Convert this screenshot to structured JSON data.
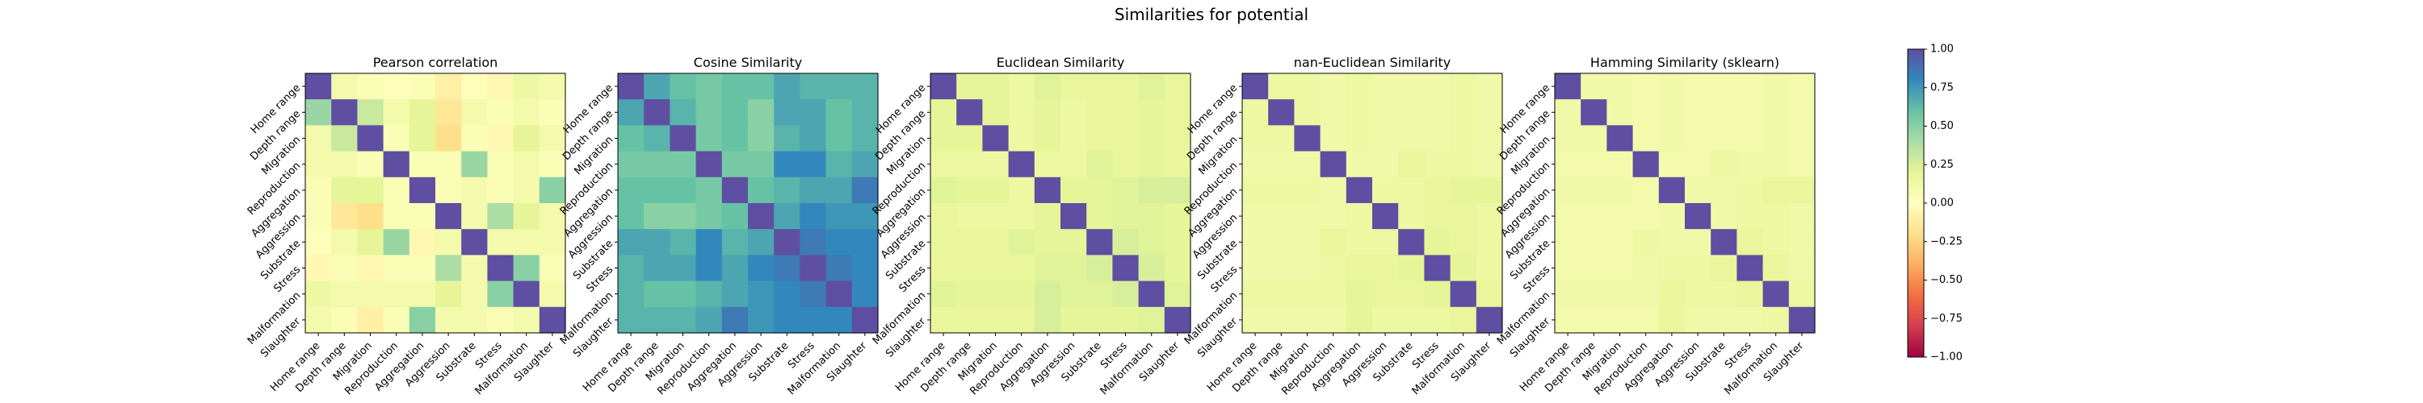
{
  "suptitle": "Similarities for potential",
  "labels": [
    "Home range",
    "Depth range",
    "Migration",
    "Reproduction",
    "Aggregation",
    "Aggression",
    "Substrate",
    "Stress",
    "Malformation",
    "Slaughter"
  ],
  "colorbar": {
    "colormap": "Spectral",
    "vmin": -1.0,
    "vmax": 1.0,
    "ticks": [
      "1.00",
      "0.75",
      "0.50",
      "0.25",
      "0.00",
      "−0.25",
      "−0.50",
      "−0.75",
      "−1.00"
    ]
  },
  "chart_data": [
    {
      "type": "heatmap",
      "title": "Pearson correlation",
      "values": [
        [
          1.0,
          0.1,
          0.05,
          0.02,
          0.05,
          -0.1,
          0.02,
          -0.05,
          0.15,
          0.1
        ],
        [
          0.45,
          1.0,
          0.3,
          0.1,
          0.2,
          -0.15,
          0.1,
          0.05,
          0.1,
          0.05
        ],
        [
          0.1,
          0.3,
          1.0,
          0.05,
          0.2,
          -0.2,
          0.05,
          -0.05,
          0.2,
          0.1
        ],
        [
          0.1,
          0.1,
          0.05,
          1.0,
          0.05,
          0.05,
          0.45,
          0.05,
          0.1,
          0.05
        ],
        [
          0.05,
          0.2,
          0.2,
          0.05,
          1.0,
          0.05,
          0.1,
          0.05,
          0.1,
          0.5
        ],
        [
          0.05,
          -0.15,
          -0.2,
          0.05,
          0.05,
          1.0,
          0.1,
          0.4,
          0.2,
          0.1
        ],
        [
          0.02,
          0.1,
          0.2,
          0.45,
          -0.05,
          0.1,
          1.0,
          0.1,
          0.1,
          0.1
        ],
        [
          -0.05,
          0.05,
          -0.05,
          0.05,
          0.05,
          0.4,
          0.1,
          1.0,
          0.5,
          0.05
        ],
        [
          0.15,
          0.1,
          0.1,
          0.1,
          0.1,
          0.2,
          0.1,
          0.5,
          1.0,
          0.1
        ],
        [
          0.1,
          0.05,
          -0.1,
          0.05,
          0.5,
          0.1,
          0.1,
          0.05,
          0.1,
          1.0
        ]
      ]
    },
    {
      "type": "heatmap",
      "title": "Cosine Similarity",
      "values": [
        [
          1.0,
          0.7,
          0.6,
          0.55,
          0.6,
          0.6,
          0.7,
          0.65,
          0.65,
          0.65
        ],
        [
          0.7,
          1.0,
          0.65,
          0.55,
          0.6,
          0.5,
          0.7,
          0.7,
          0.6,
          0.65
        ],
        [
          0.6,
          0.65,
          1.0,
          0.55,
          0.6,
          0.5,
          0.65,
          0.7,
          0.6,
          0.65
        ],
        [
          0.55,
          0.55,
          0.55,
          1.0,
          0.55,
          0.55,
          0.8,
          0.8,
          0.65,
          0.7
        ],
        [
          0.6,
          0.6,
          0.6,
          0.55,
          1.0,
          0.6,
          0.65,
          0.7,
          0.7,
          0.85
        ],
        [
          0.6,
          0.5,
          0.5,
          0.55,
          0.6,
          1.0,
          0.7,
          0.8,
          0.75,
          0.75
        ],
        [
          0.7,
          0.7,
          0.65,
          0.8,
          0.65,
          0.7,
          1.0,
          0.85,
          0.8,
          0.8
        ],
        [
          0.65,
          0.7,
          0.7,
          0.8,
          0.7,
          0.8,
          0.85,
          1.0,
          0.85,
          0.8
        ],
        [
          0.65,
          0.6,
          0.6,
          0.65,
          0.7,
          0.75,
          0.8,
          0.85,
          1.0,
          0.8
        ],
        [
          0.65,
          0.65,
          0.65,
          0.7,
          0.85,
          0.75,
          0.8,
          0.8,
          0.8,
          1.0
        ]
      ]
    },
    {
      "type": "heatmap",
      "title": "Euclidean Similarity",
      "values": [
        [
          1.0,
          0.2,
          0.2,
          0.15,
          0.22,
          0.18,
          0.18,
          0.18,
          0.22,
          0.18
        ],
        [
          0.2,
          1.0,
          0.2,
          0.15,
          0.2,
          0.15,
          0.18,
          0.18,
          0.2,
          0.18
        ],
        [
          0.2,
          0.2,
          1.0,
          0.15,
          0.2,
          0.15,
          0.18,
          0.18,
          0.2,
          0.18
        ],
        [
          0.15,
          0.15,
          0.15,
          1.0,
          0.15,
          0.15,
          0.22,
          0.18,
          0.2,
          0.18
        ],
        [
          0.22,
          0.2,
          0.2,
          0.15,
          1.0,
          0.2,
          0.2,
          0.22,
          0.25,
          0.25
        ],
        [
          0.18,
          0.15,
          0.15,
          0.15,
          0.2,
          1.0,
          0.2,
          0.22,
          0.22,
          0.2
        ],
        [
          0.18,
          0.18,
          0.18,
          0.22,
          0.2,
          0.2,
          1.0,
          0.25,
          0.22,
          0.2
        ],
        [
          0.18,
          0.18,
          0.18,
          0.18,
          0.22,
          0.22,
          0.25,
          1.0,
          0.25,
          0.2
        ],
        [
          0.22,
          0.2,
          0.2,
          0.2,
          0.25,
          0.22,
          0.22,
          0.25,
          1.0,
          0.22
        ],
        [
          0.18,
          0.18,
          0.18,
          0.18,
          0.25,
          0.2,
          0.2,
          0.2,
          0.22,
          1.0
        ]
      ]
    },
    {
      "type": "heatmap",
      "title": "nan-Euclidean Similarity",
      "values": [
        [
          1.0,
          0.15,
          0.15,
          0.12,
          0.15,
          0.12,
          0.12,
          0.12,
          0.15,
          0.12
        ],
        [
          0.15,
          1.0,
          0.15,
          0.12,
          0.15,
          0.12,
          0.12,
          0.12,
          0.15,
          0.12
        ],
        [
          0.15,
          0.15,
          1.0,
          0.12,
          0.15,
          0.12,
          0.12,
          0.12,
          0.15,
          0.12
        ],
        [
          0.12,
          0.12,
          0.12,
          1.0,
          0.12,
          0.12,
          0.18,
          0.15,
          0.15,
          0.12
        ],
        [
          0.15,
          0.15,
          0.15,
          0.12,
          1.0,
          0.15,
          0.15,
          0.18,
          0.2,
          0.2
        ],
        [
          0.12,
          0.12,
          0.12,
          0.12,
          0.15,
          1.0,
          0.15,
          0.18,
          0.18,
          0.15
        ],
        [
          0.12,
          0.12,
          0.12,
          0.18,
          0.15,
          0.15,
          1.0,
          0.2,
          0.18,
          0.15
        ],
        [
          0.12,
          0.12,
          0.12,
          0.15,
          0.18,
          0.18,
          0.2,
          1.0,
          0.2,
          0.15
        ],
        [
          0.15,
          0.15,
          0.15,
          0.15,
          0.2,
          0.18,
          0.18,
          0.2,
          1.0,
          0.18
        ],
        [
          0.12,
          0.12,
          0.12,
          0.12,
          0.2,
          0.15,
          0.15,
          0.15,
          0.18,
          1.0
        ]
      ]
    },
    {
      "type": "heatmap",
      "title": "Hamming Similarity (sklearn)",
      "values": [
        [
          1.0,
          0.12,
          0.12,
          0.1,
          0.12,
          0.1,
          0.1,
          0.1,
          0.12,
          0.1
        ],
        [
          0.12,
          1.0,
          0.12,
          0.1,
          0.12,
          0.1,
          0.1,
          0.1,
          0.12,
          0.1
        ],
        [
          0.12,
          0.12,
          1.0,
          0.1,
          0.12,
          0.1,
          0.1,
          0.1,
          0.12,
          0.1
        ],
        [
          0.1,
          0.1,
          0.1,
          1.0,
          0.1,
          0.1,
          0.15,
          0.12,
          0.12,
          0.1
        ],
        [
          0.12,
          0.12,
          0.12,
          0.1,
          1.0,
          0.12,
          0.12,
          0.15,
          0.18,
          0.18
        ],
        [
          0.1,
          0.1,
          0.1,
          0.1,
          0.12,
          1.0,
          0.12,
          0.15,
          0.15,
          0.12
        ],
        [
          0.1,
          0.1,
          0.1,
          0.15,
          0.12,
          0.12,
          1.0,
          0.18,
          0.15,
          0.12
        ],
        [
          0.1,
          0.1,
          0.1,
          0.12,
          0.15,
          0.15,
          0.18,
          1.0,
          0.18,
          0.12
        ],
        [
          0.12,
          0.12,
          0.12,
          0.12,
          0.18,
          0.15,
          0.15,
          0.18,
          1.0,
          0.15
        ],
        [
          0.1,
          0.1,
          0.1,
          0.1,
          0.18,
          0.12,
          0.12,
          0.12,
          0.15,
          1.0
        ]
      ]
    }
  ]
}
